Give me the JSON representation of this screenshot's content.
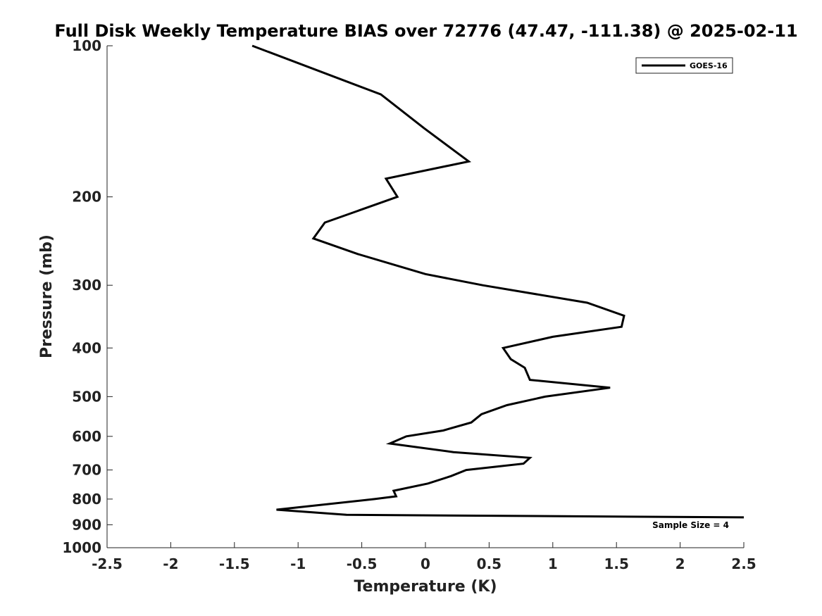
{
  "chart_data": {
    "type": "line",
    "title": "Full Disk Weekly Temperature BIAS over 72776 (47.47, -111.38) @ 2025-02-11",
    "xlabel": "Temperature (K)",
    "ylabel": "Pressure (mb)",
    "xlim": [
      -2.5,
      2.5
    ],
    "ylim": [
      100,
      1000
    ],
    "y_scale": "log",
    "y_reversed": true,
    "grid": false,
    "x_ticks": [
      -2.5,
      -2,
      -1.5,
      -1,
      -0.5,
      0,
      0.5,
      1,
      1.5,
      2,
      2.5
    ],
    "x_tick_labels": [
      "-2.5",
      "-2",
      "-1.5",
      "-1",
      "-0.5",
      "0",
      "0.5",
      "1",
      "1.5",
      "2",
      "2.5"
    ],
    "y_ticks": [
      100,
      200,
      300,
      400,
      500,
      600,
      700,
      800,
      900,
      1000
    ],
    "y_tick_labels": [
      "100",
      "200",
      "300",
      "400",
      "500",
      "600",
      "700",
      "800",
      "900",
      "1000"
    ],
    "legend": {
      "placement": "top-right",
      "entries": [
        "GOES-16"
      ]
    },
    "annotations": [
      "Sample Size = 4"
    ],
    "series": [
      {
        "name": "GOES-16",
        "color": "#000000",
        "points": [
          {
            "x": -1.36,
            "y": 100
          },
          {
            "x": -0.35,
            "y": 125
          },
          {
            "x": -0.01,
            "y": 146
          },
          {
            "x": 0.34,
            "y": 170
          },
          {
            "x": -0.31,
            "y": 184
          },
          {
            "x": -0.22,
            "y": 200
          },
          {
            "x": -0.79,
            "y": 225
          },
          {
            "x": -0.88,
            "y": 242
          },
          {
            "x": -0.53,
            "y": 260
          },
          {
            "x": 0.0,
            "y": 285
          },
          {
            "x": 0.45,
            "y": 300
          },
          {
            "x": 1.27,
            "y": 325
          },
          {
            "x": 1.56,
            "y": 345
          },
          {
            "x": 1.54,
            "y": 363
          },
          {
            "x": 1.0,
            "y": 380
          },
          {
            "x": 0.61,
            "y": 400
          },
          {
            "x": 0.67,
            "y": 421
          },
          {
            "x": 0.78,
            "y": 438
          },
          {
            "x": 0.82,
            "y": 463
          },
          {
            "x": 1.45,
            "y": 480
          },
          {
            "x": 0.94,
            "y": 500
          },
          {
            "x": 0.64,
            "y": 520
          },
          {
            "x": 0.44,
            "y": 542
          },
          {
            "x": 0.36,
            "y": 563
          },
          {
            "x": 0.14,
            "y": 584
          },
          {
            "x": -0.15,
            "y": 600
          },
          {
            "x": -0.28,
            "y": 620
          },
          {
            "x": 0.22,
            "y": 645
          },
          {
            "x": 0.82,
            "y": 662
          },
          {
            "x": 0.77,
            "y": 680
          },
          {
            "x": 0.32,
            "y": 700
          },
          {
            "x": 0.2,
            "y": 720
          },
          {
            "x": 0.02,
            "y": 745
          },
          {
            "x": -0.25,
            "y": 770
          },
          {
            "x": -0.23,
            "y": 790
          },
          {
            "x": -0.4,
            "y": 800
          },
          {
            "x": -1.17,
            "y": 840
          },
          {
            "x": -0.62,
            "y": 860
          },
          {
            "x": 2.5,
            "y": 870
          }
        ]
      }
    ]
  }
}
